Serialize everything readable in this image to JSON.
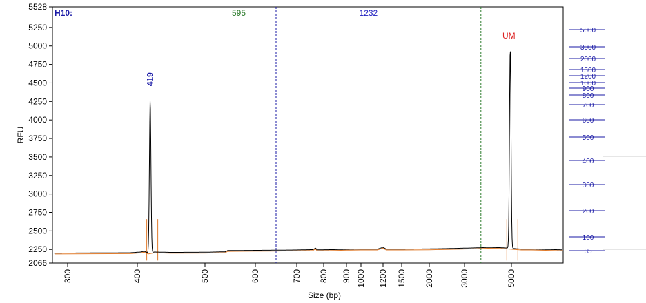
{
  "chart_data": {
    "type": "line",
    "sample_label": "H10:",
    "xlabel": "Size (bp)",
    "ylabel": "RFU",
    "ylim": [
      2066,
      5528
    ],
    "y_ticks": [
      2066,
      2250,
      2500,
      2750,
      3000,
      3250,
      3500,
      3750,
      4000,
      4250,
      4500,
      4750,
      5000,
      5250,
      5528
    ],
    "x_ticks": [
      300,
      400,
      500,
      600,
      700,
      800,
      900,
      1000,
      1200,
      1500,
      2000,
      3000,
      5000
    ],
    "region_markers": [
      {
        "label": "595",
        "color": "#2e7d2e",
        "label_at_bp": 600
      },
      {
        "label": "1232",
        "color": "#2020c0",
        "label_at_bp": 1232
      }
    ],
    "boundary_lines": [
      {
        "at_bp": 650,
        "color": "#1a1aa6",
        "style": "dashed"
      },
      {
        "at_bp": 3700,
        "color": "#2e7d2e",
        "style": "dashed"
      }
    ],
    "peaks": [
      {
        "label": "419",
        "size_bp": 419,
        "rfu": 4270,
        "label_color": "#1a1aa6"
      },
      {
        "label": "UM",
        "size_bp": 4950,
        "rfu": 4970,
        "label_color": "#dd2222"
      }
    ],
    "baseline_rfu": [
      [
        270,
        2200
      ],
      [
        390,
        2205
      ],
      [
        405,
        2215
      ],
      [
        410,
        2225
      ],
      [
        414,
        2210
      ],
      [
        416,
        2200
      ],
      [
        425,
        2215
      ],
      [
        450,
        2210
      ],
      [
        500,
        2212
      ],
      [
        540,
        2218
      ],
      [
        545,
        2235
      ],
      [
        600,
        2238
      ],
      [
        650,
        2240
      ],
      [
        700,
        2243
      ],
      [
        760,
        2248
      ],
      [
        770,
        2270
      ],
      [
        775,
        2245
      ],
      [
        850,
        2248
      ],
      [
        900,
        2252
      ],
      [
        1000,
        2255
      ],
      [
        1150,
        2255
      ],
      [
        1200,
        2280
      ],
      [
        1250,
        2255
      ],
      [
        1500,
        2255
      ],
      [
        2000,
        2258
      ],
      [
        2500,
        2262
      ],
      [
        3000,
        2268
      ],
      [
        3500,
        2272
      ],
      [
        4000,
        2278
      ],
      [
        4500,
        2275
      ],
      [
        4800,
        2270
      ],
      [
        5500,
        2255
      ],
      [
        6000,
        2255
      ],
      [
        8000,
        2245
      ]
    ],
    "ladder_labels": [
      "5000",
      "3000",
      "2000",
      "1500",
      "1200",
      "1000",
      "900",
      "800",
      "700",
      "600",
      "500",
      "400",
      "300",
      "200",
      "100",
      "35"
    ]
  }
}
